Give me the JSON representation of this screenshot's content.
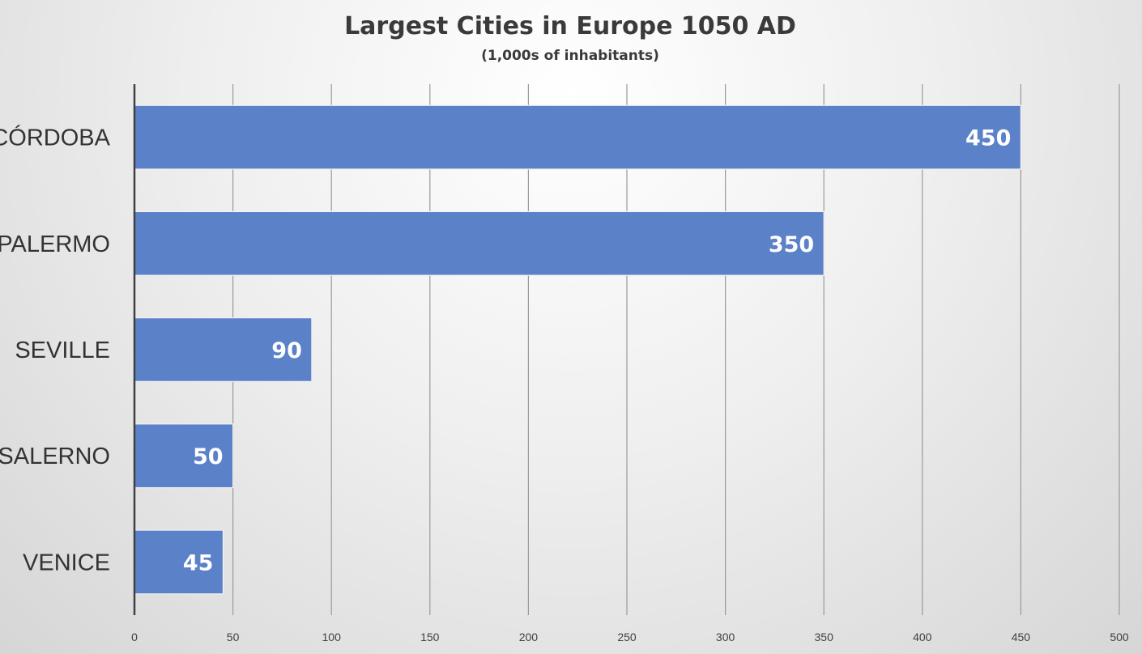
{
  "chart_data": {
    "type": "bar",
    "orientation": "horizontal",
    "title": "Largest Cities in Europe 1050 AD",
    "subtitle": "(1,000s of inhabitants)",
    "categories": [
      "CÓRDOBA",
      "PALERMO",
      "SEVILLE",
      "SALERNO",
      "VENICE"
    ],
    "values": [
      450,
      350,
      90,
      50,
      45
    ],
    "xlim": [
      0,
      500
    ],
    "xticks": [
      0,
      50,
      100,
      150,
      200,
      250,
      300,
      350,
      400,
      450,
      500
    ],
    "xlabel": "",
    "ylabel": "",
    "grid": true,
    "legend": "none",
    "bar_color": "#5b82c9",
    "bar_stroke": "#f2f2f2",
    "data_label_color": "#ffffff",
    "gridline_color": "#9a9a9a"
  }
}
